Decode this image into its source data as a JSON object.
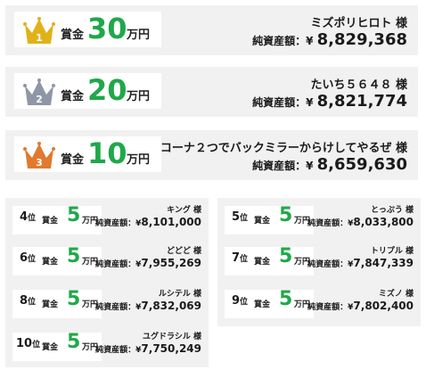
{
  "labels": {
    "shokin": "賞金",
    "man_yen": "万円",
    "sama": "様",
    "i": "位",
    "worth": "純資産額：",
    "yen": "¥"
  },
  "top": [
    {
      "rank": "1",
      "amount": "30",
      "name": "ミズポリヒロト",
      "worth": "8,829,368",
      "crown_color": "#e0b21a"
    },
    {
      "rank": "2",
      "amount": "20",
      "name": "たいち５６４８",
      "worth": "8,821,774",
      "crown_color": "#8f96a6"
    },
    {
      "rank": "3",
      "amount": "10",
      "name": "コーナ２つでバックミラーからけしてやるぜ",
      "worth": "8,659,630",
      "crown_color": "#e07a2e"
    }
  ],
  "others": [
    {
      "rank": "4",
      "amount": "5",
      "name": "キング",
      "worth": "8,101,000"
    },
    {
      "rank": "5",
      "amount": "5",
      "name": "とっぷう",
      "worth": "8,033,800"
    },
    {
      "rank": "6",
      "amount": "5",
      "name": "どどど",
      "worth": "7,955,269"
    },
    {
      "rank": "7",
      "amount": "5",
      "name": "トリプル",
      "worth": "7,847,339"
    },
    {
      "rank": "8",
      "amount": "5",
      "name": "ルシテル",
      "worth": "7,832,069"
    },
    {
      "rank": "9",
      "amount": "5",
      "name": "ミズノ",
      "worth": "7,802,400"
    },
    {
      "rank": "10",
      "amount": "5",
      "name": "ユグドラシル",
      "worth": "7,750,249"
    }
  ],
  "colors": {
    "accent_green": "#1fa84a",
    "card_bg": "#f1f1f1"
  }
}
